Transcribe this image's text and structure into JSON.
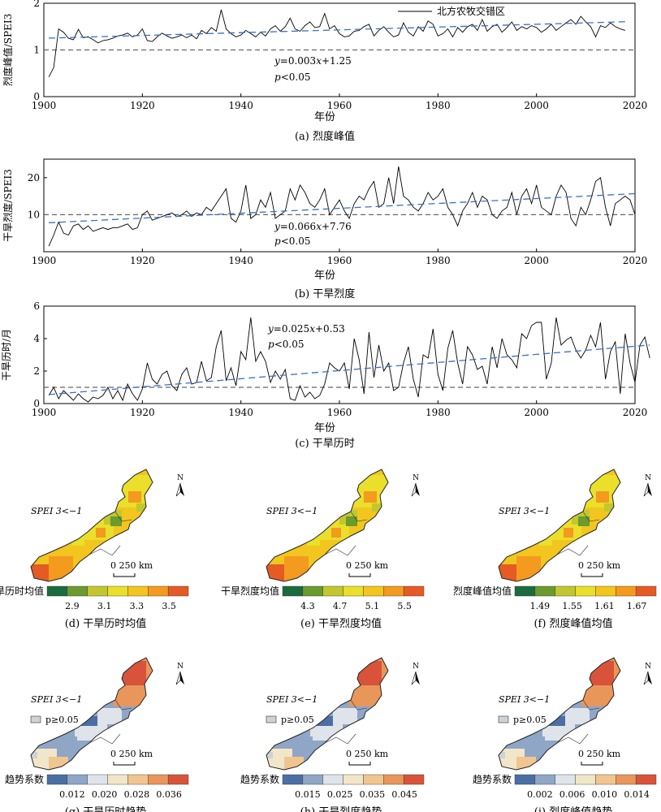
{
  "chart_data": [
    {
      "type": "line",
      "panel": "(a)",
      "caption": "(a) 烈度峰值",
      "ylabel": "烈度峰值/SPEI3",
      "xlabel": "年份",
      "xlim": [
        1900,
        2020
      ],
      "ylim": [
        0,
        2
      ],
      "xticks": [
        1900,
        1920,
        1940,
        1960,
        1980,
        2000,
        2020
      ],
      "yticks": [
        0,
        1,
        2
      ],
      "legend": "北方农牧交错区",
      "threshold": 1,
      "annotation": {
        "eq_y": "y",
        "eq_rest": "=0.003",
        "eq_x": "x",
        "eq_tail": "+1.25",
        "p_p": "p",
        "p_tail": "<0.05"
      },
      "trend": {
        "slope": 0.003,
        "intercept": 1.25
      },
      "series": [
        {
          "x_start": 1901,
          "values": [
            0.42,
            0.62,
            1.45,
            1.38,
            1.25,
            1.22,
            1.44,
            1.26,
            1.28,
            1.22,
            1.15,
            1.2,
            1.22,
            1.25,
            1.3,
            1.32,
            1.36,
            1.28,
            1.32,
            1.45,
            1.2,
            1.18,
            1.28,
            1.36,
            1.3,
            1.25,
            1.28,
            1.32,
            1.26,
            1.32,
            1.24,
            1.42,
            1.35,
            1.48,
            1.4,
            1.86,
            1.45,
            1.35,
            1.28,
            1.32,
            1.42,
            1.35,
            1.28,
            1.38,
            1.3,
            1.45,
            1.52,
            1.4,
            1.5,
            1.68,
            1.45,
            1.4,
            1.52,
            1.6,
            1.48,
            1.5,
            1.78,
            1.45,
            1.52,
            1.35,
            1.28,
            1.3,
            1.4,
            1.42,
            1.5,
            1.55,
            1.3,
            1.42,
            1.5,
            1.38,
            1.28,
            1.32,
            1.58,
            1.38,
            1.3,
            1.5,
            1.4,
            1.62,
            1.55,
            1.3,
            1.35,
            1.45,
            1.28,
            1.48,
            1.38,
            1.5,
            1.55,
            1.42,
            1.65,
            1.4,
            1.5,
            1.55,
            1.38,
            1.48,
            1.6,
            1.42,
            1.5,
            1.45,
            1.52,
            1.48,
            1.38,
            1.45,
            1.55,
            1.42,
            1.5,
            1.58,
            1.65,
            1.55,
            1.72,
            1.6,
            1.5,
            1.28,
            1.52,
            1.48,
            1.58,
            1.5,
            1.45,
            1.42
          ]
        }
      ]
    },
    {
      "type": "line",
      "panel": "(b)",
      "caption": "(b) 干旱烈度",
      "ylabel": "干旱烈度/SPEI3",
      "xlabel": "年份",
      "xlim": [
        1900,
        2020
      ],
      "ylim": [
        0,
        25
      ],
      "xticks": [
        1900,
        1920,
        1940,
        1960,
        1980,
        2000,
        2020
      ],
      "yticks": [
        10,
        20
      ],
      "threshold": 10,
      "annotation": {
        "eq_y": "y",
        "eq_rest": "=0.066",
        "eq_x": "x",
        "eq_tail": "+7.76",
        "p_p": "p",
        "p_tail": "<0.05"
      },
      "trend": {
        "slope": 0.066,
        "intercept": 7.76
      },
      "series": [
        {
          "x_start": 1901,
          "values": [
            1.5,
            4.5,
            8,
            5,
            4.5,
            7,
            7.5,
            6,
            7,
            5.5,
            6,
            6.5,
            6,
            6.5,
            6.5,
            7,
            7.5,
            6,
            6.5,
            10,
            11,
            8.5,
            9,
            9.5,
            10,
            10.5,
            9.5,
            10,
            11,
            9.5,
            10.5,
            10,
            12,
            11,
            13,
            15,
            17,
            9,
            8,
            11,
            18,
            9,
            10,
            14,
            12,
            16,
            9,
            10,
            11,
            17,
            14,
            18,
            16,
            13,
            12,
            14,
            17,
            10,
            12,
            14,
            11,
            9,
            13,
            15,
            14,
            17,
            19,
            12,
            13,
            20,
            13,
            23,
            15,
            14,
            12,
            11,
            13,
            16,
            14,
            15,
            17,
            12,
            10,
            7,
            11,
            13,
            16,
            12,
            15,
            14,
            10,
            9,
            11,
            12,
            16,
            10,
            15,
            17,
            13,
            18,
            12,
            11,
            10,
            15,
            18,
            16,
            9,
            7,
            12,
            10,
            14,
            19,
            20,
            12,
            7,
            13,
            14,
            15,
            14,
            10
          ]
        }
      ]
    },
    {
      "type": "line",
      "panel": "(c)",
      "caption": "(c) 干旱历时",
      "ylabel": "干旱历时/月",
      "xlabel": "年份",
      "xlim": [
        1900,
        2020
      ],
      "ylim": [
        0,
        6
      ],
      "xticks": [
        1900,
        1920,
        1940,
        1960,
        1980,
        2000,
        2020
      ],
      "yticks": [
        0,
        2,
        4,
        6
      ],
      "threshold": 1,
      "annotation": {
        "eq_y": "y",
        "eq_rest": "=0.025",
        "eq_x": "x",
        "eq_tail": "+0.53",
        "p_p": "p",
        "p_tail": "<0.05"
      },
      "trend": {
        "slope": 0.025,
        "intercept": 0.53
      },
      "series": [
        {
          "x_start": 1901,
          "values": [
            0.5,
            1,
            0.3,
            0.8,
            0.5,
            0.2,
            0.6,
            0.3,
            0.1,
            0.4,
            0.3,
            0.5,
            1,
            0.3,
            0.8,
            0.2,
            1.2,
            0.6,
            0.2,
            0.9,
            2.5,
            1.5,
            1.2,
            1.8,
            2,
            1.1,
            0.8,
            1.8,
            2.2,
            1.2,
            1.3,
            2.6,
            1.4,
            1.6,
            3.5,
            4.5,
            1.4,
            2.2,
            1.1,
            3.2,
            2.7,
            5.3,
            2.6,
            3.2,
            2.6,
            1.3,
            2,
            1.5,
            2.1,
            0.3,
            0.2,
            1.1,
            0.4,
            0.7,
            0.3,
            0.5,
            1.2,
            2.5,
            2.2,
            2,
            2.5,
            0.9,
            4,
            2.7,
            0.6,
            4.4,
            1.6,
            3.6,
            2,
            2.5,
            0.8,
            1,
            2.5,
            3.5,
            1.5,
            0.4,
            3,
            2.8,
            4.6,
            1.8,
            0.8,
            3.4,
            4.5,
            2.5,
            1.2,
            3.5,
            3,
            2.1,
            2.3,
            1.2,
            3.5,
            2.2,
            4,
            3,
            2.7,
            2.2,
            4.3,
            4,
            4.8,
            5,
            5,
            1.5,
            2.5,
            5.3,
            3.6,
            3.9,
            4.1,
            3.3,
            2.8,
            3.3,
            4.2,
            3.5,
            5,
            1.5,
            3.2,
            3.8,
            0.6,
            4.3,
            2.5,
            1.3,
            3.6,
            4.1,
            2.8
          ]
        }
      ]
    }
  ],
  "maps": [
    {
      "caption": "(d) 干旱历时均值",
      "legend_title": "干旱历时均值",
      "ticks": [
        "2.9",
        "3.1",
        "3.3",
        "3.5"
      ],
      "colors": [
        "#1a6b3e",
        "#6b9a2e",
        "#c2c72f",
        "#eadf2a",
        "#f2c61e",
        "#f39a1f",
        "#e55b23"
      ],
      "criterion": "SPEI 3<−1",
      "scale": "0 250 km",
      "north": "N"
    },
    {
      "caption": "(e) 干旱烈度均值",
      "legend_title": "干旱烈度均值",
      "ticks": [
        "4.3",
        "4.7",
        "5.1",
        "5.5"
      ],
      "colors": [
        "#1a6b3e",
        "#6b9a2e",
        "#c2c72f",
        "#eadf2a",
        "#f2c61e",
        "#f39a1f",
        "#e55b23"
      ],
      "criterion": "SPEI 3<−1",
      "scale": "0 250 km",
      "north": "N"
    },
    {
      "caption": "(f) 烈度峰值均值",
      "legend_title": "烈度峰值均值",
      "ticks": [
        "1.49",
        "1.55",
        "1.61",
        "1.67"
      ],
      "colors": [
        "#1a6b3e",
        "#6b9a2e",
        "#c2c72f",
        "#eadf2a",
        "#f2c61e",
        "#f39a1f",
        "#e55b23"
      ],
      "criterion": "SPEI 3<−1",
      "scale": "0 250 km",
      "north": "N"
    },
    {
      "caption": "(g) 干旱历时趋势",
      "legend_title": "趋势系数",
      "ticks": [
        "0.012",
        "0.020",
        "0.028",
        "0.036"
      ],
      "colors": [
        "#4b6fa5",
        "#8fa6c6",
        "#dfe3ea",
        "#f2e6c8",
        "#f1c58f",
        "#e9965b",
        "#d8533a"
      ],
      "criterion": "SPEI 3<−1",
      "nonsig": "p≥0.05",
      "scale": "0 250 km",
      "north": "N"
    },
    {
      "caption": "(h) 干旱烈度趋势",
      "legend_title": "趋势系数",
      "ticks": [
        "0.015",
        "0.025",
        "0.035",
        "0.045"
      ],
      "colors": [
        "#4b6fa5",
        "#8fa6c6",
        "#dfe3ea",
        "#f2e6c8",
        "#f1c58f",
        "#e9965b",
        "#d8533a"
      ],
      "criterion": "SPEI 3<−1",
      "nonsig": "p≥0.05",
      "scale": "0 250 km",
      "north": "N"
    },
    {
      "caption": "(i) 烈度峰值趋势",
      "legend_title": "趋势系数",
      "ticks": [
        "0.002",
        "0.006",
        "0.010",
        "0.014"
      ],
      "colors": [
        "#4b6fa5",
        "#8fa6c6",
        "#dfe3ea",
        "#f2e6c8",
        "#f1c58f",
        "#e9965b",
        "#d8533a"
      ],
      "criterion": "SPEI 3<−1",
      "nonsig": "p≥0.05",
      "scale": "0 250 km",
      "north": "N"
    }
  ]
}
